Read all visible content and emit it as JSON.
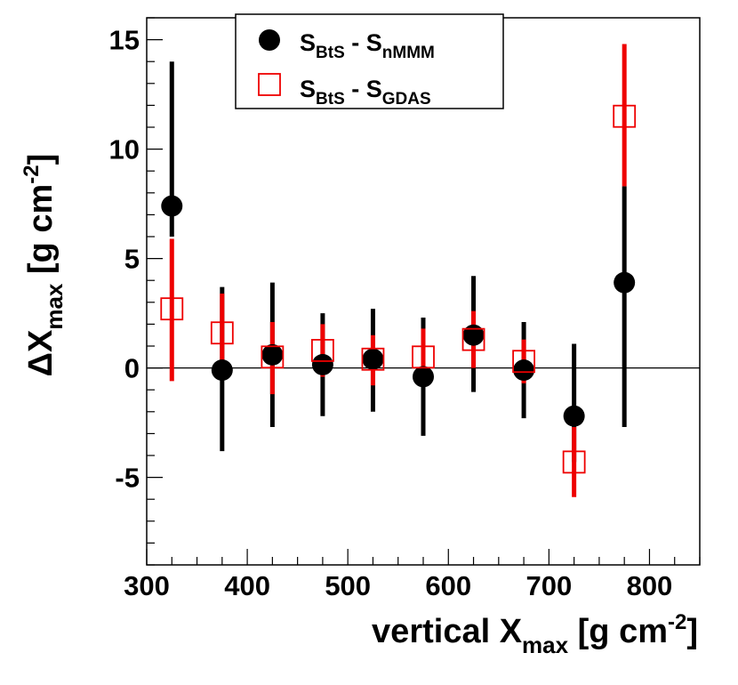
{
  "chart_data": {
    "type": "scatter",
    "xlabel": {
      "main": "vertical X",
      "sub": "max",
      "unit_open": " [g cm",
      "sup": "-2",
      "unit_close": "]"
    },
    "ylabel": {
      "main": "ΔX",
      "sub": "max",
      "unit_open": " [g cm",
      "sup": "-2",
      "unit_close": "]"
    },
    "xlim": [
      300,
      850
    ],
    "ylim": [
      -9,
      16
    ],
    "x_ticks": [
      300,
      400,
      500,
      600,
      700,
      800
    ],
    "x_tick_labels": [
      "300",
      "400",
      "500",
      "600",
      "700",
      "800"
    ],
    "y_ticks": [
      -5,
      0,
      5,
      10,
      15
    ],
    "y_tick_labels": [
      "-5",
      "0",
      "5",
      "10",
      "15"
    ],
    "reference_line_y": 0,
    "legend_position": "top-center",
    "series": [
      {
        "name": "S_BtS - S_nMMM",
        "legend": {
          "a": "S",
          "a_sub": "BtS",
          "sep": " - ",
          "b": "S",
          "b_sub": "nMMM"
        },
        "marker": "filled-circle",
        "color": "#000000",
        "points": [
          {
            "x": 325,
            "y": 7.4,
            "lo": 6.0,
            "hi": 14.0
          },
          {
            "x": 375,
            "y": -0.1,
            "lo": -3.8,
            "hi": 3.7
          },
          {
            "x": 425,
            "y": 0.6,
            "lo": -2.7,
            "hi": 3.9
          },
          {
            "x": 475,
            "y": 0.15,
            "lo": -2.2,
            "hi": 2.5
          },
          {
            "x": 525,
            "y": 0.4,
            "lo": -2.0,
            "hi": 2.7
          },
          {
            "x": 575,
            "y": -0.4,
            "lo": -3.1,
            "hi": 2.3
          },
          {
            "x": 625,
            "y": 1.5,
            "lo": -1.1,
            "hi": 4.2
          },
          {
            "x": 675,
            "y": -0.1,
            "lo": -2.3,
            "hi": 2.1
          },
          {
            "x": 725,
            "y": -2.2,
            "lo": -4.3,
            "hi": 1.1
          },
          {
            "x": 775,
            "y": 3.9,
            "lo": -2.7,
            "hi": 8.3
          }
        ]
      },
      {
        "name": "S_BtS - S_GDAS",
        "legend": {
          "a": "S",
          "a_sub": "BtS",
          "sep": " - ",
          "b": "S",
          "b_sub": "GDAS"
        },
        "marker": "open-square",
        "color": "#ee0000",
        "points": [
          {
            "x": 325,
            "y": 2.7,
            "lo": -0.6,
            "hi": 5.9
          },
          {
            "x": 375,
            "y": 1.6,
            "lo": -0.3,
            "hi": 3.4
          },
          {
            "x": 425,
            "y": 0.5,
            "lo": -1.2,
            "hi": 2.1
          },
          {
            "x": 475,
            "y": 0.8,
            "lo": -0.4,
            "hi": 2.0
          },
          {
            "x": 525,
            "y": 0.4,
            "lo": -0.8,
            "hi": 1.5
          },
          {
            "x": 575,
            "y": 0.5,
            "lo": -0.8,
            "hi": 1.8
          },
          {
            "x": 625,
            "y": 1.3,
            "lo": 0.0,
            "hi": 2.6
          },
          {
            "x": 675,
            "y": 0.3,
            "lo": -0.7,
            "hi": 1.3
          },
          {
            "x": 725,
            "y": -4.3,
            "lo": -5.9,
            "hi": -2.7
          },
          {
            "x": 775,
            "y": 11.5,
            "lo": 8.3,
            "hi": 14.8
          }
        ]
      }
    ]
  }
}
